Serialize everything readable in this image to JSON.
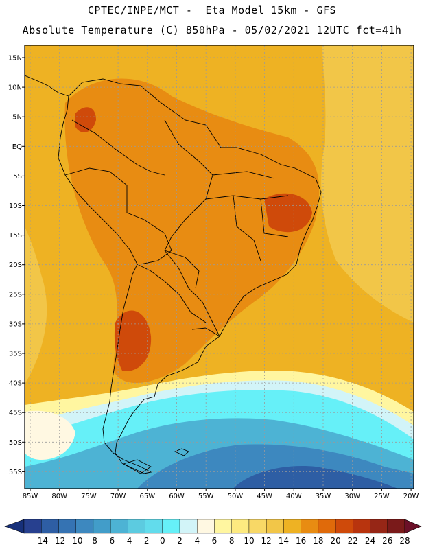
{
  "title": {
    "line1": "CPTEC/INPE/MCT -  Eta Model 15km - GFS",
    "line2": "Absolute Temperature (C) 850hPa - 05/02/2021 12UTC fct=41h"
  },
  "map": {
    "variable": "Absolute Temperature (C)",
    "level": "850hPa",
    "lat_labels": [
      "15N",
      "10N",
      "5N",
      "EQ",
      "5S",
      "10S",
      "15S",
      "20S",
      "25S",
      "30S",
      "35S",
      "40S",
      "45S",
      "50S",
      "55S"
    ],
    "lon_labels": [
      "85W",
      "80W",
      "75W",
      "70W",
      "65W",
      "60W",
      "55W",
      "50W",
      "45W",
      "40W",
      "35W",
      "30W",
      "25W",
      "20W"
    ],
    "grid": true,
    "background_warm": "#f2b01e"
  },
  "colorbar": {
    "labels": [
      "-14",
      "-12",
      "-10",
      "-8",
      "-6",
      "-4",
      "-2",
      "0",
      "2",
      "4",
      "6",
      "8",
      "10",
      "12",
      "14",
      "16",
      "18",
      "20",
      "22",
      "24",
      "26",
      "28"
    ],
    "colors": [
      "#27408f",
      "#2e5ea4",
      "#3573b3",
      "#3d88bf",
      "#429dc9",
      "#4db3d4",
      "#5ccbe0",
      "#62dcec",
      "#66f0f8",
      "#d2f4f8",
      "#fff8e2",
      "#fff6a0",
      "#fdea80",
      "#f8d866",
      "#f2c648",
      "#eeb223",
      "#e88c12",
      "#e06a0a",
      "#cf4a0a",
      "#b8340e",
      "#962616",
      "#7a1a1a"
    ],
    "low_arrow_color": "#17307a",
    "high_arrow_color": "#6b1028"
  }
}
